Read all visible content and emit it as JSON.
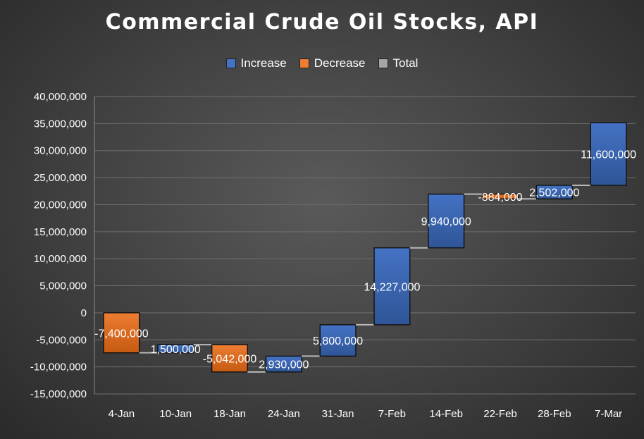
{
  "chart_data": {
    "type": "waterfall",
    "title": "Commercial Crude Oil Stocks, API",
    "categories": [
      "4-Jan",
      "10-Jan",
      "18-Jan",
      "24-Jan",
      "31-Jan",
      "7-Feb",
      "14-Feb",
      "22-Feb",
      "28-Feb",
      "7-Mar"
    ],
    "values": [
      -7400000,
      1500000,
      -5042000,
      2930000,
      5800000,
      14227000,
      9940000,
      -884000,
      2502000,
      11600000
    ],
    "data_labels": [
      "-7,400,000",
      "1,500,000",
      "-5,042,000",
      "2,930,000",
      "5,800,000",
      "14,227,000",
      "9,940,000",
      "-884,000",
      "2,502,000",
      "11,600,000"
    ],
    "ylim": [
      -15000000,
      40000000
    ],
    "yticks": [
      40000000,
      35000000,
      30000000,
      25000000,
      20000000,
      15000000,
      10000000,
      5000000,
      0,
      -5000000,
      -10000000,
      -15000000
    ],
    "ytick_labels": [
      "40,000,000",
      "35,000,000",
      "30,000,000",
      "25,000,000",
      "20,000,000",
      "15,000,000",
      "10,000,000",
      "5,000,000",
      "0",
      "-5,000,000",
      "-10,000,000",
      "-15,000,000"
    ],
    "legend": [
      {
        "name": "Increase",
        "color": "#4472c4"
      },
      {
        "name": "Decrease",
        "color": "#ed7d31"
      },
      {
        "name": "Total",
        "color": "#a5a5a5"
      }
    ],
    "legend_position": "top",
    "grid": true,
    "xlabel": "",
    "ylabel": ""
  }
}
